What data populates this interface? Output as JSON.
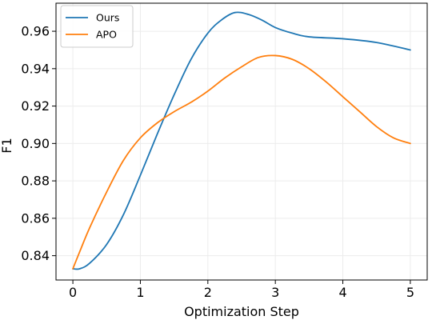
{
  "chart_data": {
    "type": "line",
    "title": "",
    "xlabel": "Optimization Step",
    "ylabel": "F1",
    "xlim": [
      -0.25,
      5.25
    ],
    "ylim": [
      0.827,
      0.975
    ],
    "xticks": [
      0,
      1,
      2,
      3,
      4,
      5
    ],
    "xtick_labels": [
      "0",
      "1",
      "2",
      "3",
      "4",
      "5"
    ],
    "yticks": [
      0.84,
      0.86,
      0.88,
      0.9,
      0.92,
      0.94,
      0.96
    ],
    "ytick_labels": [
      "0.84",
      "0.86",
      "0.88",
      "0.90",
      "0.92",
      "0.94",
      "0.96"
    ],
    "grid": true,
    "legend_position": "top-left",
    "series": [
      {
        "name": "Ours",
        "color": "#1f77b4",
        "x": [
          0,
          0.1,
          0.25,
          0.5,
          0.75,
          1.0,
          1.25,
          1.5,
          1.75,
          2.0,
          2.2,
          2.4,
          2.6,
          2.8,
          3.0,
          3.25,
          3.5,
          4.0,
          4.5,
          5.0
        ],
        "y": [
          0.833,
          0.833,
          0.836,
          0.846,
          0.862,
          0.883,
          0.905,
          0.926,
          0.945,
          0.959,
          0.966,
          0.97,
          0.969,
          0.966,
          0.962,
          0.959,
          0.957,
          0.956,
          0.954,
          0.95
        ]
      },
      {
        "name": "APO",
        "color": "#ff7f0e",
        "x": [
          0,
          0.1,
          0.25,
          0.5,
          0.75,
          1.0,
          1.25,
          1.5,
          1.75,
          2.0,
          2.25,
          2.5,
          2.75,
          3.0,
          3.25,
          3.5,
          3.75,
          4.0,
          4.25,
          4.5,
          4.75,
          5.0
        ],
        "y": [
          0.833,
          0.842,
          0.855,
          0.874,
          0.891,
          0.903,
          0.911,
          0.917,
          0.922,
          0.928,
          0.935,
          0.941,
          0.946,
          0.947,
          0.945,
          0.94,
          0.933,
          0.925,
          0.917,
          0.909,
          0.903,
          0.9
        ]
      }
    ]
  }
}
